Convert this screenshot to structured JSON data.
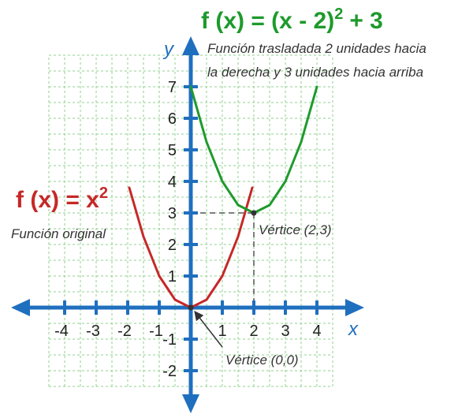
{
  "chart_data": {
    "type": "line",
    "x_axis_label": "x",
    "y_axis_label": "y",
    "xlim": [
      -4.7,
      5.3
    ],
    "ylim": [
      -2.9,
      8.4
    ],
    "x_ticks": [
      -4,
      -3,
      -2,
      -1,
      1,
      2,
      3,
      4
    ],
    "x_tick_labels": [
      "-4",
      "-3",
      "-2",
      "-1",
      "1",
      "2",
      "3",
      "4"
    ],
    "y_ticks": [
      -2,
      -1,
      1,
      2,
      3,
      4,
      5,
      6,
      7
    ],
    "y_tick_labels": [
      "-2",
      "-1",
      "1",
      "2",
      "3",
      "4",
      "5",
      "6",
      "7"
    ],
    "grid": true,
    "series": [
      {
        "name": "f (x) = x²",
        "color": "#c62828",
        "x": [
          -1.95,
          -1.5,
          -1,
          -0.5,
          0,
          0.5,
          1,
          1.5,
          1.95
        ],
        "y": [
          3.8,
          2.25,
          1,
          0.25,
          0,
          0.25,
          1,
          2.25,
          3.8
        ]
      },
      {
        "name": "f (x) = (x - 2)² + 3",
        "color": "#1e9a2c",
        "x": [
          0,
          0.5,
          1,
          1.5,
          2,
          2.5,
          3,
          3.5,
          4
        ],
        "y": [
          7,
          5.25,
          4,
          3.25,
          3,
          3.25,
          4,
          5.25,
          7
        ]
      }
    ],
    "vertices": [
      {
        "x": 0,
        "y": 0,
        "label": "Vértice (0,0)"
      },
      {
        "x": 2,
        "y": 3,
        "label": "Vértice (2,3)"
      }
    ]
  },
  "labels": {
    "green_title_main": "f (x) = (x - 2)",
    "green_title_exp": "2",
    "green_title_tail": "+ 3",
    "green_note_line1": "Función trasladada  2 unidades hacia",
    "green_note_line2": "la derecha y 3 unidades hacia arriba",
    "red_title_main": "f (x) = x",
    "red_title_exp": "2",
    "red_note": "Función original",
    "x_axis_name": "x",
    "y_axis_name": "y"
  },
  "colors": {
    "axis": "#1f6fbf",
    "grid": "#8fd08f",
    "guide": "#555555"
  }
}
